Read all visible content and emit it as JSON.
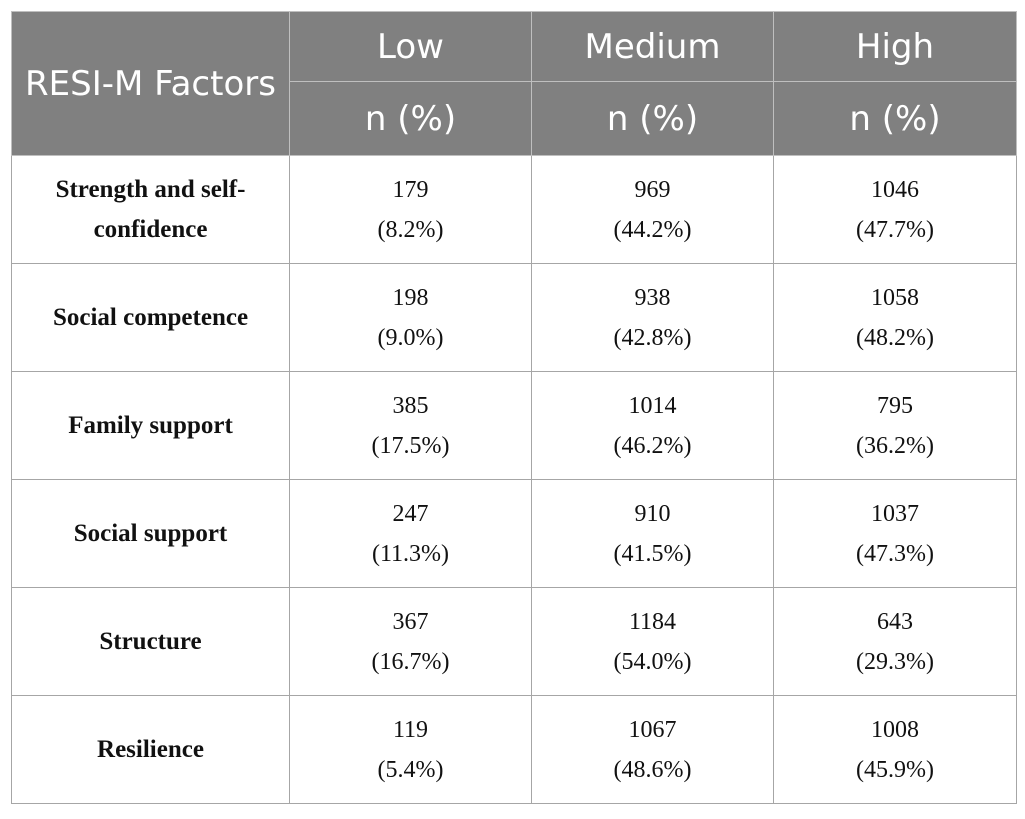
{
  "header": {
    "factor_label": "RESI-M Factors",
    "columns": [
      "Low",
      "Medium",
      "High"
    ],
    "sub_label": "n (%)"
  },
  "rows": [
    {
      "factor": "Strength and self-confidence",
      "low": {
        "n": "179",
        "pct": "(8.2%)"
      },
      "medium": {
        "n": "969",
        "pct": "(44.2%)"
      },
      "high": {
        "n": "1046",
        "pct": "(47.7%)"
      }
    },
    {
      "factor": "Social competence",
      "low": {
        "n": "198",
        "pct": "(9.0%)"
      },
      "medium": {
        "n": "938",
        "pct": "(42.8%)"
      },
      "high": {
        "n": "1058",
        "pct": "(48.2%)"
      }
    },
    {
      "factor": "Family support",
      "low": {
        "n": "385",
        "pct": "(17.5%)"
      },
      "medium": {
        "n": "1014",
        "pct": "(46.2%)"
      },
      "high": {
        "n": "795",
        "pct": "(36.2%)"
      }
    },
    {
      "factor": "Social support",
      "low": {
        "n": "247",
        "pct": "(11.3%)"
      },
      "medium": {
        "n": "910",
        "pct": "(41.5%)"
      },
      "high": {
        "n": "1037",
        "pct": "(47.3%)"
      }
    },
    {
      "factor": "Structure",
      "low": {
        "n": "367",
        "pct": "(16.7%)"
      },
      "medium": {
        "n": "1184",
        "pct": "(54.0%)"
      },
      "high": {
        "n": "643",
        "pct": "(29.3%)"
      }
    },
    {
      "factor": "Resilience",
      "low": {
        "n": "119",
        "pct": "(5.4%)"
      },
      "medium": {
        "n": "1067",
        "pct": "(48.6%)"
      },
      "high": {
        "n": "1008",
        "pct": "(45.9%)"
      }
    }
  ]
}
